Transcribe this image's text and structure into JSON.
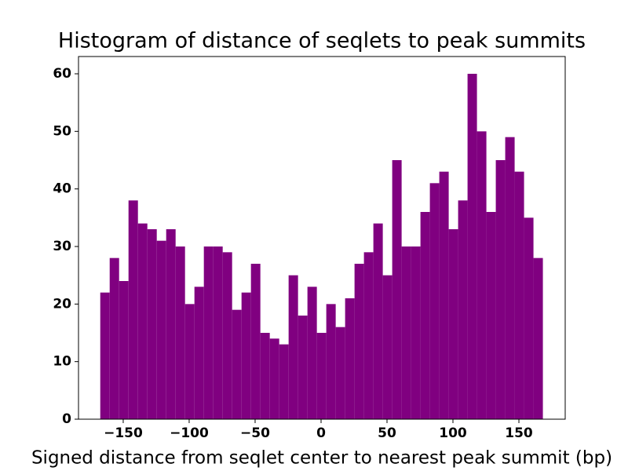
{
  "chart_data": {
    "type": "histogram",
    "title": "Histogram of distance of seqlets to peak summits",
    "x_label": "Signed distance from seqlet center to nearest peak summit (bp)",
    "color": "#800080",
    "bins": [
      -167.4,
      -160.26,
      -153.12,
      -145.98,
      -138.84,
      -131.7,
      -124.56,
      -117.42,
      -110.28,
      -103.14,
      -96,
      -88.86,
      -81.72,
      -74.58,
      -67.44,
      -60.3,
      -53.16,
      -46.02,
      -38.88,
      -31.74,
      -24.6,
      -17.46,
      -10.32,
      -3.18,
      3.96,
      11.1,
      18.24,
      25.38,
      32.52,
      39.66,
      46.8,
      53.94,
      61.08,
      68.22,
      75.36,
      82.5,
      89.64,
      96.78,
      103.92,
      111.06,
      118.2,
      125.34,
      132.48,
      139.62,
      146.76,
      153.9,
      161.04,
      168.18
    ],
    "values": [
      22,
      28,
      24,
      38,
      34,
      33,
      31,
      33,
      30,
      20,
      23,
      30,
      30,
      29,
      19,
      22,
      27,
      15,
      14,
      13,
      25,
      18,
      23,
      15,
      20,
      16,
      21,
      27,
      29,
      34,
      25,
      45,
      30,
      30,
      36,
      41,
      43,
      33,
      38,
      60,
      50,
      36,
      45,
      49,
      43,
      35,
      28
    ],
    "xlim": [
      -183.9,
      185.1
    ],
    "xticks": [
      {
        "value": -150,
        "label": "−150"
      },
      {
        "value": -100,
        "label": "−100"
      },
      {
        "value": -50,
        "label": "−50"
      },
      0,
      50,
      100,
      150
    ],
    "ylim": [
      0,
      63
    ],
    "yticks": [
      0,
      10,
      20,
      30,
      40,
      50,
      60
    ]
  }
}
